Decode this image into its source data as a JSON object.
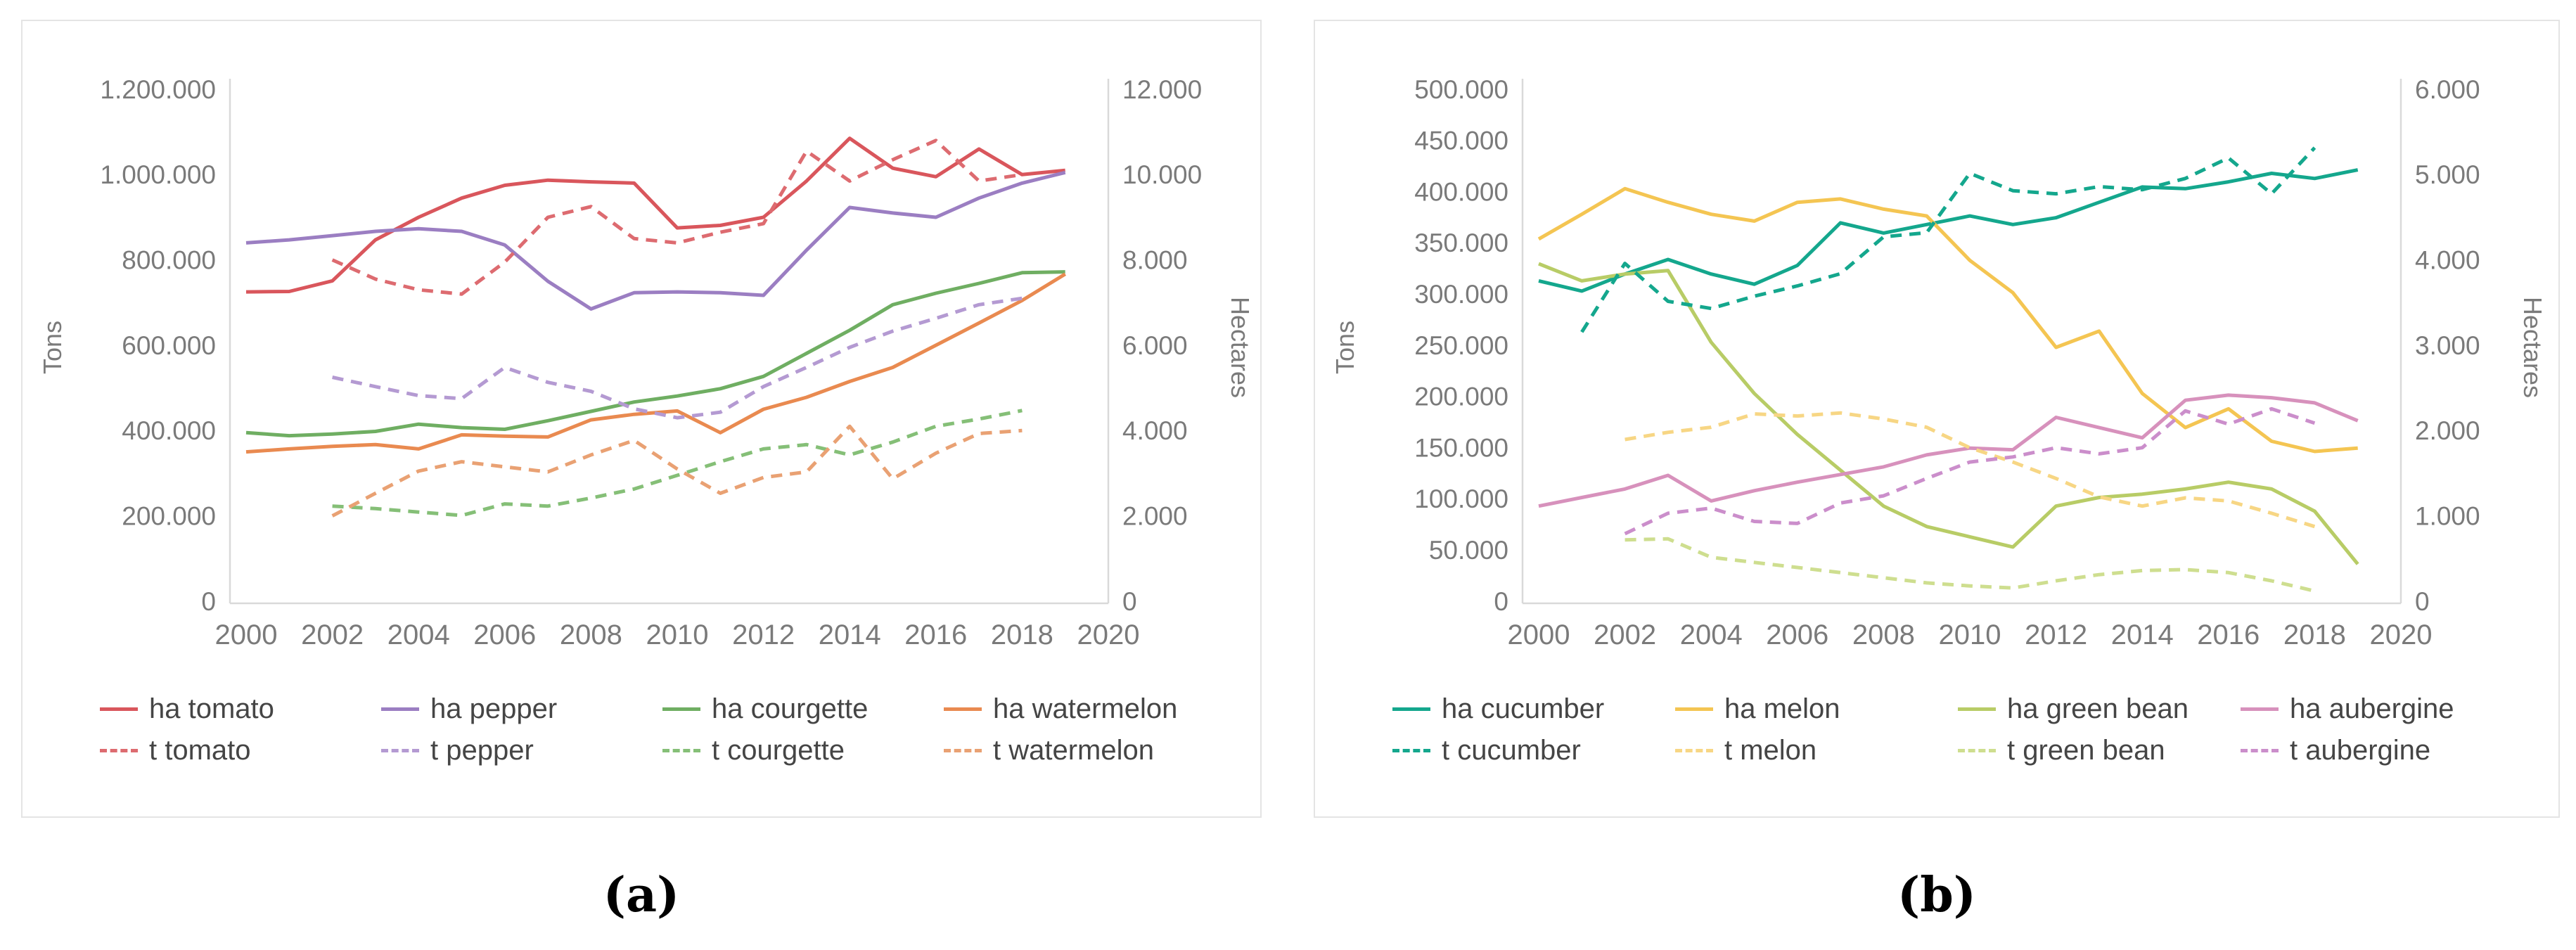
{
  "figure": {
    "background": "#ffffff",
    "axis_line_color": "#d9d9d9",
    "tick_color": "#7a7a7a",
    "legend_text_color": "#454545"
  },
  "captions": {
    "a": "(a)",
    "b": "(b)"
  },
  "chart_data": [
    {
      "id": "a",
      "type": "line",
      "title": "",
      "xlabel": "",
      "ylabel_left": "Tons",
      "ylabel_right": "Hectares",
      "x_ticks": [
        2000,
        2002,
        2004,
        2006,
        2008,
        2010,
        2012,
        2014,
        2016,
        2018,
        2020
      ],
      "x_range": [
        2000,
        2020
      ],
      "left_axis": {
        "min": 0,
        "max": 1200000,
        "step": 200000
      },
      "right_axis": {
        "min": 0,
        "max": 12000,
        "step": 2000
      },
      "grid": false,
      "legend_position": "bottom",
      "legend_order": [
        "ha tomato",
        "ha pepper",
        "ha courgette",
        "ha watermelon",
        "t tomato",
        "t pepper",
        "t courgette",
        "t watermelon"
      ],
      "series": [
        {
          "name": "ha tomato",
          "unit": "hectares",
          "axis": "right",
          "style": "solid",
          "color": "#d9565c",
          "start_year": 2000,
          "values": [
            7300,
            7310,
            7560,
            8520,
            9050,
            9500,
            9800,
            9920,
            9880,
            9850,
            8800,
            8860,
            9050,
            9900,
            10900,
            10200,
            10000,
            10650,
            10050,
            10150
          ]
        },
        {
          "name": "ha pepper",
          "unit": "hectares",
          "axis": "right",
          "style": "solid",
          "color": "#9b7ec2",
          "start_year": 2000,
          "values": [
            8450,
            8520,
            8620,
            8720,
            8780,
            8720,
            8400,
            7550,
            6900,
            7280,
            7300,
            7280,
            7220,
            8280,
            9280,
            9150,
            9050,
            9500,
            9850,
            10100
          ]
        },
        {
          "name": "ha courgette",
          "unit": "hectares",
          "axis": "right",
          "style": "solid",
          "color": "#6fae62",
          "start_year": 2000,
          "values": [
            4000,
            3930,
            3970,
            4030,
            4200,
            4120,
            4080,
            4280,
            4500,
            4720,
            4860,
            5030,
            5320,
            5860,
            6400,
            7000,
            7270,
            7500,
            7750,
            7770
          ]
        },
        {
          "name": "ha watermelon",
          "unit": "hectares",
          "axis": "right",
          "style": "solid",
          "color": "#e98a50",
          "start_year": 2000,
          "values": [
            3550,
            3620,
            3680,
            3720,
            3620,
            3950,
            3920,
            3900,
            4300,
            4430,
            4510,
            4000,
            4550,
            4830,
            5200,
            5530,
            6050,
            6570,
            7100,
            7720
          ]
        },
        {
          "name": "t tomato",
          "unit": "tons",
          "axis": "left",
          "style": "dashed",
          "color": "#dd6b70",
          "start_year": 2002,
          "values": [
            805000,
            760000,
            735000,
            725000,
            800000,
            905000,
            930000,
            855000,
            845000,
            870000,
            890000,
            1060000,
            990000,
            1040000,
            1085000,
            990000,
            1005000
          ]
        },
        {
          "name": "t pepper",
          "unit": "tons",
          "axis": "left",
          "style": "dashed",
          "color": "#b49ad2",
          "start_year": 2002,
          "values": [
            530000,
            508000,
            487000,
            480000,
            553000,
            518000,
            497000,
            456000,
            435000,
            448000,
            508000,
            553000,
            600000,
            638000,
            668000,
            700000,
            715000
          ]
        },
        {
          "name": "t courgette",
          "unit": "tons",
          "axis": "left",
          "style": "dashed",
          "color": "#85bf77",
          "start_year": 2002,
          "values": [
            228000,
            222000,
            214000,
            206000,
            233000,
            228000,
            247000,
            268000,
            300000,
            332000,
            362000,
            372000,
            348000,
            378000,
            415000,
            432000,
            452000
          ]
        },
        {
          "name": "t watermelon",
          "unit": "tons",
          "axis": "left",
          "style": "dashed",
          "color": "#e9a173",
          "start_year": 2002,
          "values": [
            205000,
            258000,
            310000,
            332000,
            320000,
            308000,
            348000,
            382000,
            315000,
            258000,
            295000,
            308000,
            415000,
            292000,
            352000,
            398000,
            405000
          ]
        }
      ]
    },
    {
      "id": "b",
      "type": "line",
      "title": "",
      "xlabel": "",
      "ylabel_left": "Tons",
      "ylabel_right": "Hectares",
      "x_ticks": [
        2000,
        2002,
        2004,
        2006,
        2008,
        2010,
        2012,
        2014,
        2016,
        2018,
        2020
      ],
      "x_range": [
        2000,
        2020
      ],
      "left_axis": {
        "min": 0,
        "max": 500000,
        "step": 50000
      },
      "right_axis": {
        "min": 0,
        "max": 6000,
        "step": 1000
      },
      "grid": false,
      "legend_position": "bottom",
      "legend_order": [
        "ha cucumber",
        "ha melon",
        "ha green bean",
        "ha aubergine",
        "t cucumber",
        "t melon",
        "t green bean",
        "t aubergine"
      ],
      "series": [
        {
          "name": "ha cucumber",
          "unit": "hectares",
          "axis": "right",
          "style": "solid",
          "color": "#14a78d",
          "start_year": 2000,
          "values": [
            3780,
            3660,
            3860,
            4030,
            3860,
            3740,
            3960,
            4460,
            4340,
            4440,
            4540,
            4440,
            4520,
            4700,
            4880,
            4860,
            4940,
            5040,
            4980,
            5080
          ]
        },
        {
          "name": "ha melon",
          "unit": "hectares",
          "axis": "right",
          "style": "solid",
          "color": "#f4c552",
          "start_year": 2000,
          "values": [
            4270,
            4560,
            4860,
            4700,
            4560,
            4480,
            4700,
            4740,
            4620,
            4540,
            4020,
            3640,
            3000,
            3190,
            2460,
            2060,
            2280,
            1900,
            1780,
            1820
          ]
        },
        {
          "name": "ha green bean",
          "unit": "hectares",
          "axis": "right",
          "style": "solid",
          "color": "#b8cc66",
          "start_year": 2000,
          "values": [
            3980,
            3780,
            3860,
            3900,
            3060,
            2460,
            1980,
            1560,
            1140,
            900,
            780,
            660,
            1140,
            1240,
            1280,
            1340,
            1420,
            1340,
            1080,
            460
          ]
        },
        {
          "name": "ha aubergine",
          "unit": "hectares",
          "axis": "right",
          "style": "solid",
          "color": "#d791bc",
          "start_year": 2000,
          "values": [
            1140,
            1240,
            1340,
            1500,
            1200,
            1320,
            1420,
            1510,
            1600,
            1740,
            1820,
            1800,
            2180,
            2060,
            1940,
            2380,
            2440,
            2410,
            2350,
            2140
          ]
        },
        {
          "name": "t cucumber",
          "unit": "tons",
          "axis": "left",
          "style": "dashed",
          "color": "#14a78d",
          "start_year": 2001,
          "values": [
            265000,
            332000,
            295000,
            288000,
            300000,
            310000,
            322000,
            358000,
            362000,
            420000,
            403000,
            400000,
            407000,
            404000,
            415000,
            435000,
            400000,
            445000
          ]
        },
        {
          "name": "t melon",
          "unit": "tons",
          "axis": "left",
          "style": "dashed",
          "color": "#f7d684",
          "start_year": 2002,
          "values": [
            160000,
            167000,
            172000,
            185000,
            183000,
            186000,
            180000,
            172000,
            152000,
            138000,
            122000,
            104000,
            95000,
            103000,
            100000,
            88000,
            75000
          ]
        },
        {
          "name": "t green bean",
          "unit": "tons",
          "axis": "left",
          "style": "dashed",
          "color": "#cede8f",
          "start_year": 2002,
          "values": [
            62000,
            63000,
            45000,
            40000,
            35000,
            30000,
            25000,
            20000,
            17000,
            15000,
            22000,
            28000,
            32000,
            33000,
            30000,
            22000,
            12000
          ]
        },
        {
          "name": "t aubergine",
          "unit": "tons",
          "axis": "left",
          "style": "dashed",
          "color": "#cb8ecb",
          "start_year": 2002,
          "values": [
            68000,
            88000,
            93000,
            80000,
            78000,
            98000,
            105000,
            122000,
            138000,
            143000,
            152000,
            146000,
            152000,
            188000,
            175000,
            190000,
            176000
          ]
        }
      ]
    }
  ]
}
